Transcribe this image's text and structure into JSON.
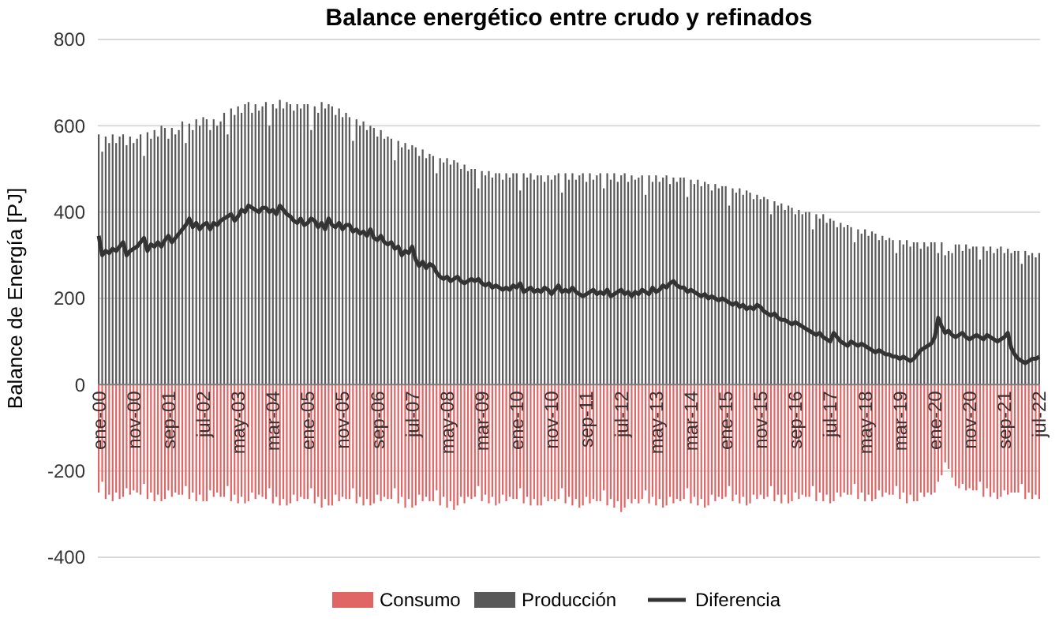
{
  "chart_data": {
    "type": "bar",
    "title": "Balance energético entre crudo y refinados",
    "ylabel": "Balance de Energía [PJ]",
    "categories": [
      "ene-00",
      null,
      null,
      null,
      null,
      null,
      null,
      null,
      null,
      null,
      "nov-00",
      null,
      null,
      null,
      null,
      null,
      null,
      null,
      null,
      null,
      "sep-01",
      null,
      null,
      null,
      null,
      null,
      null,
      null,
      null,
      null,
      "jul-02",
      null,
      null,
      null,
      null,
      null,
      null,
      null,
      null,
      null,
      "may-03",
      null,
      null,
      null,
      null,
      null,
      null,
      null,
      null,
      null,
      "mar-04",
      null,
      null,
      null,
      null,
      null,
      null,
      null,
      null,
      null,
      "ene-05",
      null,
      null,
      null,
      null,
      null,
      null,
      null,
      null,
      null,
      "nov-05",
      null,
      null,
      null,
      null,
      null,
      null,
      null,
      null,
      null,
      "sep-06",
      null,
      null,
      null,
      null,
      null,
      null,
      null,
      null,
      null,
      "jul-07",
      null,
      null,
      null,
      null,
      null,
      null,
      null,
      null,
      null,
      "may-08",
      null,
      null,
      null,
      null,
      null,
      null,
      null,
      null,
      null,
      "mar-09",
      null,
      null,
      null,
      null,
      null,
      null,
      null,
      null,
      null,
      "ene-10",
      null,
      null,
      null,
      null,
      null,
      null,
      null,
      null,
      null,
      "nov-10",
      null,
      null,
      null,
      null,
      null,
      null,
      null,
      null,
      null,
      "sep-11",
      null,
      null,
      null,
      null,
      null,
      null,
      null,
      null,
      null,
      "jul-12",
      null,
      null,
      null,
      null,
      null,
      null,
      null,
      null,
      null,
      "may-13",
      null,
      null,
      null,
      null,
      null,
      null,
      null,
      null,
      null,
      "mar-14",
      null,
      null,
      null,
      null,
      null,
      null,
      null,
      null,
      null,
      "ene-15",
      null,
      null,
      null,
      null,
      null,
      null,
      null,
      null,
      null,
      "nov-15",
      null,
      null,
      null,
      null,
      null,
      null,
      null,
      null,
      null,
      "sep-16",
      null,
      null,
      null,
      null,
      null,
      null,
      null,
      null,
      null,
      "jul-17",
      null,
      null,
      null,
      null,
      null,
      null,
      null,
      null,
      null,
      "may-18",
      null,
      null,
      null,
      null,
      null,
      null,
      null,
      null,
      null,
      "mar-19",
      null,
      null,
      null,
      null,
      null,
      null,
      null,
      null,
      null,
      "ene-20",
      null,
      null,
      null,
      null,
      null,
      null,
      null,
      null,
      null,
      "nov-20",
      null,
      null,
      null,
      null,
      null,
      null,
      null,
      null,
      null,
      "sep-21",
      null,
      null,
      null,
      null,
      null,
      null,
      null,
      null,
      null,
      "jul-22"
    ],
    "series": [
      {
        "name": "Consumo",
        "color": "#e06666",
        "values": [
          -250,
          -225,
          -265,
          -255,
          -270,
          -250,
          -265,
          -260,
          -240,
          -255,
          -245,
          -250,
          -255,
          -230,
          -265,
          -250,
          -270,
          -255,
          -270,
          -265,
          -245,
          -260,
          -250,
          -255,
          -255,
          -235,
          -265,
          -250,
          -270,
          -255,
          -270,
          -270,
          -245,
          -260,
          -250,
          -260,
          -260,
          -235,
          -270,
          -255,
          -275,
          -260,
          -275,
          -270,
          -250,
          -265,
          -255,
          -260,
          -265,
          -240,
          -275,
          -260,
          -280,
          -265,
          -280,
          -275,
          -255,
          -270,
          -260,
          -265,
          -265,
          -240,
          -275,
          -260,
          -285,
          -265,
          -280,
          -280,
          -255,
          -270,
          -260,
          -265,
          -265,
          -240,
          -275,
          -260,
          -280,
          -265,
          -280,
          -275,
          -255,
          -270,
          -260,
          -265,
          -265,
          -240,
          -275,
          -260,
          -285,
          -265,
          -285,
          -280,
          -255,
          -270,
          -260,
          -270,
          -270,
          -245,
          -280,
          -260,
          -285,
          -270,
          -290,
          -280,
          -260,
          -275,
          -260,
          -265,
          -260,
          -235,
          -270,
          -255,
          -275,
          -260,
          -280,
          -275,
          -255,
          -270,
          -260,
          -265,
          -265,
          -240,
          -275,
          -260,
          -280,
          -265,
          -280,
          -280,
          -260,
          -270,
          -265,
          -270,
          -265,
          -240,
          -275,
          -260,
          -280,
          -265,
          -285,
          -280,
          -260,
          -275,
          -265,
          -270,
          -270,
          -245,
          -280,
          -265,
          -285,
          -270,
          -295,
          -285,
          -265,
          -275,
          -265,
          -275,
          -265,
          -245,
          -275,
          -260,
          -280,
          -265,
          -285,
          -280,
          -260,
          -275,
          -265,
          -270,
          -265,
          -240,
          -275,
          -260,
          -280,
          -265,
          -285,
          -280,
          -255,
          -270,
          -260,
          -265,
          -260,
          -235,
          -270,
          -255,
          -275,
          -260,
          -280,
          -275,
          -255,
          -265,
          -255,
          -265,
          -260,
          -235,
          -270,
          -255,
          -275,
          -255,
          -275,
          -270,
          -250,
          -265,
          -255,
          -260,
          -260,
          -235,
          -270,
          -250,
          -270,
          -255,
          -275,
          -270,
          -250,
          -260,
          -250,
          -255,
          -255,
          -230,
          -265,
          -250,
          -270,
          -255,
          -270,
          -265,
          -245,
          -260,
          -250,
          -255,
          -255,
          -235,
          -265,
          -250,
          -275,
          -255,
          -270,
          -270,
          -250,
          -260,
          -250,
          -255,
          -250,
          -225,
          -210,
          -180,
          -195,
          -215,
          -235,
          -240,
          -230,
          -245,
          -240,
          -245,
          -245,
          -225,
          -260,
          -240,
          -260,
          -250,
          -265,
          -260,
          -245,
          -255,
          -250,
          -250,
          -250,
          -230,
          -265,
          -250,
          -265,
          -255,
          -265
        ]
      },
      {
        "name": "Producción",
        "color": "#595959",
        "values": [
          580,
          540,
          575,
          560,
          580,
          560,
          575,
          580,
          555,
          575,
          560,
          570,
          580,
          530,
          585,
          570,
          590,
          575,
          600,
          595,
          570,
          595,
          580,
          590,
          610,
          560,
          605,
          590,
          615,
          600,
          620,
          615,
          590,
          615,
          600,
          610,
          630,
          580,
          640,
          625,
          645,
          630,
          650,
          655,
          630,
          650,
          635,
          645,
          655,
          600,
          650,
          640,
          660,
          640,
          655,
          650,
          635,
          650,
          640,
          650,
          650,
          590,
          645,
          630,
          655,
          640,
          650,
          645,
          625,
          640,
          620,
          630,
          620,
          565,
          615,
          600,
          610,
          590,
          600,
          595,
          575,
          590,
          570,
          575,
          570,
          520,
          565,
          550,
          560,
          545,
          555,
          550,
          530,
          545,
          525,
          535,
          530,
          490,
          525,
          515,
          525,
          510,
          520,
          515,
          500,
          510,
          495,
          500,
          500,
          455,
          495,
          485,
          495,
          480,
          490,
          490,
          475,
          490,
          480,
          490,
          490,
          450,
          490,
          480,
          490,
          475,
          485,
          485,
          470,
          485,
          475,
          485,
          490,
          445,
          490,
          475,
          490,
          475,
          485,
          490,
          470,
          490,
          475,
          485,
          490,
          455,
          490,
          475,
          490,
          470,
          485,
          490,
          470,
          485,
          475,
          480,
          485,
          440,
          485,
          470,
          485,
          470,
          480,
          485,
          465,
          480,
          470,
          480,
          480,
          435,
          475,
          465,
          475,
          460,
          470,
          465,
          450,
          465,
          455,
          460,
          460,
          415,
          455,
          445,
          455,
          440,
          450,
          445,
          430,
          440,
          430,
          435,
          430,
          395,
          425,
          415,
          420,
          405,
          415,
          410,
          395,
          405,
          395,
          400,
          400,
          360,
          395,
          385,
          395,
          375,
          385,
          380,
          365,
          375,
          365,
          370,
          365,
          330,
          360,
          350,
          360,
          345,
          355,
          350,
          335,
          345,
          335,
          340,
          335,
          305,
          335,
          325,
          335,
          320,
          330,
          330,
          315,
          330,
          320,
          330,
          330,
          305,
          330,
          300,
          310,
          305,
          325,
          325,
          310,
          325,
          315,
          320,
          320,
          290,
          320,
          310,
          320,
          305,
          315,
          320,
          305,
          315,
          305,
          310,
          310,
          280,
          310,
          300,
          305,
          295,
          305
        ]
      },
      {
        "name": "Diferencia",
        "type": "line",
        "color": "#333333",
        "values": [
          345,
          300,
          310,
          305,
          315,
          310,
          320,
          330,
          300,
          310,
          315,
          320,
          330,
          340,
          310,
          325,
          320,
          330,
          320,
          335,
          345,
          330,
          340,
          350,
          360,
          370,
          385,
          365,
          375,
          360,
          370,
          375,
          360,
          375,
          370,
          380,
          385,
          390,
          395,
          380,
          390,
          405,
          400,
          415,
          410,
          405,
          400,
          410,
          410,
          400,
          405,
          395,
          415,
          405,
          395,
          390,
          380,
          375,
          385,
          370,
          375,
          385,
          380,
          365,
          375,
          360,
          385,
          370,
          365,
          375,
          360,
          370,
          370,
          355,
          360,
          350,
          355,
          345,
          360,
          340,
          335,
          345,
          330,
          325,
          330,
          315,
          320,
          300,
          310,
          305,
          320,
          290,
          275,
          285,
          270,
          280,
          275,
          260,
          250,
          245,
          250,
          240,
          245,
          250,
          240,
          235,
          240,
          245,
          240,
          245,
          235,
          230,
          235,
          225,
          230,
          225,
          220,
          225,
          220,
          230,
          225,
          235,
          215,
          220,
          225,
          215,
          220,
          215,
          225,
          220,
          210,
          220,
          230,
          215,
          220,
          215,
          225,
          215,
          210,
          205,
          210,
          215,
          220,
          210,
          215,
          210,
          220,
          205,
          210,
          215,
          220,
          210,
          215,
          205,
          215,
          210,
          220,
          215,
          210,
          225,
          215,
          220,
          230,
          225,
          235,
          240,
          230,
          225,
          225,
          215,
          220,
          215,
          210,
          205,
          210,
          200,
          205,
          200,
          195,
          200,
          195,
          190,
          185,
          190,
          180,
          185,
          175,
          180,
          175,
          185,
          180,
          170,
          165,
          160,
          165,
          155,
          150,
          150,
          145,
          140,
          145,
          140,
          135,
          130,
          125,
          120,
          115,
          120,
          110,
          105,
          100,
          120,
          110,
          100,
          95,
          90,
          100,
          95,
          90,
          95,
          90,
          85,
          80,
          75,
          80,
          75,
          70,
          70,
          65,
          65,
          60,
          65,
          60,
          55,
          60,
          70,
          80,
          85,
          90,
          95,
          110,
          155,
          135,
          120,
          125,
          115,
          110,
          115,
          120,
          110,
          105,
          110,
          115,
          110,
          105,
          115,
          110,
          105,
          100,
          105,
          110,
          120,
          85,
          70,
          60,
          55,
          50,
          55,
          60,
          60,
          65
        ]
      }
    ],
    "ylim": [
      -400,
      800
    ],
    "yticks": [
      -400,
      -200,
      0,
      200,
      400,
      600,
      800
    ],
    "grid": "y",
    "legend": "bottom",
    "line_style": "solid",
    "marker": "none"
  }
}
